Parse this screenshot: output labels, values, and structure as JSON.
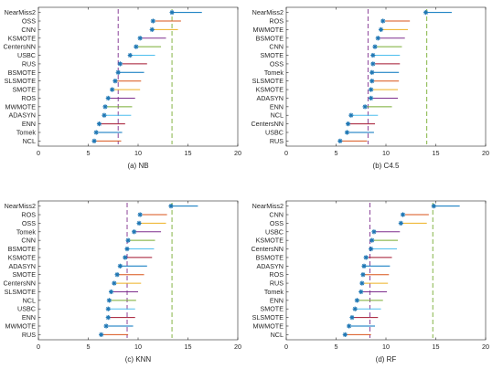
{
  "chart_data": [
    {
      "type": "scatter",
      "caption": "(a) NB",
      "categories": [
        "NearMiss2",
        "OSS",
        "CNN",
        "KSMOTE",
        "CentersNN",
        "USBC",
        "RUS",
        "BSMOTE",
        "SLSMOTE",
        "SMOTE",
        "ROS",
        "MWMOTE",
        "ADASYN",
        "ENN",
        "Tomek",
        "NCL"
      ],
      "values": [
        13.4,
        11.5,
        11.4,
        10.2,
        9.8,
        9.2,
        8.2,
        8.0,
        7.7,
        7.4,
        7.0,
        6.7,
        6.6,
        6.1,
        5.8,
        5.6
      ],
      "interval_ends": [
        16.4,
        14.3,
        14.0,
        12.8,
        12.3,
        11.7,
        10.9,
        10.6,
        10.3,
        10.2,
        9.7,
        9.4,
        9.3,
        8.7,
        8.4,
        8.3
      ],
      "reference_lines": [
        8.0,
        13.4
      ],
      "xlim": [
        0,
        20
      ],
      "xticks": [
        0,
        5,
        10,
        15,
        20
      ]
    },
    {
      "type": "scatter",
      "caption": "(b) C4.5",
      "categories": [
        "NearMiss2",
        "ROS",
        "MWMOTE",
        "BSMOTE",
        "CNN",
        "SMOTE",
        "OSS",
        "Tomek",
        "SLSMOTE",
        "KSMOTE",
        "ADASYN",
        "ENN",
        "NCL",
        "CentersNN",
        "USBC",
        "RUS"
      ],
      "values": [
        14.0,
        9.7,
        9.5,
        9.2,
        8.9,
        8.7,
        8.7,
        8.6,
        8.6,
        8.5,
        8.5,
        7.9,
        6.5,
        6.2,
        6.1,
        5.4
      ],
      "interval_ends": [
        16.6,
        12.4,
        12.2,
        11.9,
        11.6,
        11.4,
        11.4,
        11.3,
        11.3,
        11.2,
        11.2,
        10.6,
        9.2,
        8.9,
        8.8,
        8.1
      ],
      "reference_lines": [
        8.2,
        14.1
      ],
      "xlim": [
        0,
        20
      ],
      "xticks": [
        0,
        5,
        10,
        15,
        20
      ]
    },
    {
      "type": "scatter",
      "caption": "(c) KNN",
      "categories": [
        "NearMiss2",
        "ROS",
        "OSS",
        "Tomek",
        "CNN",
        "BSMOTE",
        "KSMOTE",
        "ADASYN",
        "SMOTE",
        "CentersNN",
        "SLSMOTE",
        "NCL",
        "USBC",
        "ENN",
        "MWMOTE",
        "RUS"
      ],
      "values": [
        13.3,
        10.2,
        10.1,
        9.6,
        9.0,
        8.9,
        8.7,
        8.2,
        7.9,
        7.6,
        7.3,
        7.1,
        7.0,
        7.0,
        6.8,
        6.3
      ],
      "interval_ends": [
        16.0,
        12.9,
        12.8,
        12.3,
        11.7,
        11.6,
        11.4,
        10.9,
        10.6,
        10.3,
        10.0,
        9.8,
        9.7,
        9.7,
        9.5,
        9.0
      ],
      "reference_lines": [
        8.9,
        13.4
      ],
      "xlim": [
        0,
        20
      ],
      "xticks": [
        0,
        5,
        10,
        15,
        20
      ]
    },
    {
      "type": "scatter",
      "caption": "(d) RF",
      "categories": [
        "NearMiss2",
        "CNN",
        "OSS",
        "USBC",
        "KSMOTE",
        "CentersNN",
        "BSMOTE",
        "ADASYN",
        "ROS",
        "RUS",
        "Tomek",
        "ENN",
        "SMOTE",
        "SLSMOTE",
        "MWMOTE",
        "NCL"
      ],
      "values": [
        14.8,
        11.7,
        11.5,
        8.8,
        8.6,
        8.5,
        8.0,
        7.8,
        7.7,
        7.6,
        7.5,
        7.1,
        6.9,
        6.6,
        6.3,
        5.9
      ],
      "interval_ends": [
        17.4,
        14.3,
        14.1,
        11.4,
        11.2,
        11.1,
        10.6,
        10.4,
        10.3,
        10.2,
        10.1,
        9.7,
        9.5,
        9.2,
        8.9,
        8.5
      ],
      "reference_lines": [
        8.4,
        14.7
      ],
      "xlim": [
        0,
        20
      ],
      "xticks": [
        0,
        5,
        10,
        15,
        20
      ]
    }
  ],
  "palette": [
    "#0072BD",
    "#D95319",
    "#EDB120",
    "#7E2F8E",
    "#77AC30",
    "#4DBEEE",
    "#A2142F"
  ],
  "reference_line_colors": [
    "#7E2F8E",
    "#77AC30"
  ],
  "marker_color": "#1F77B4"
}
